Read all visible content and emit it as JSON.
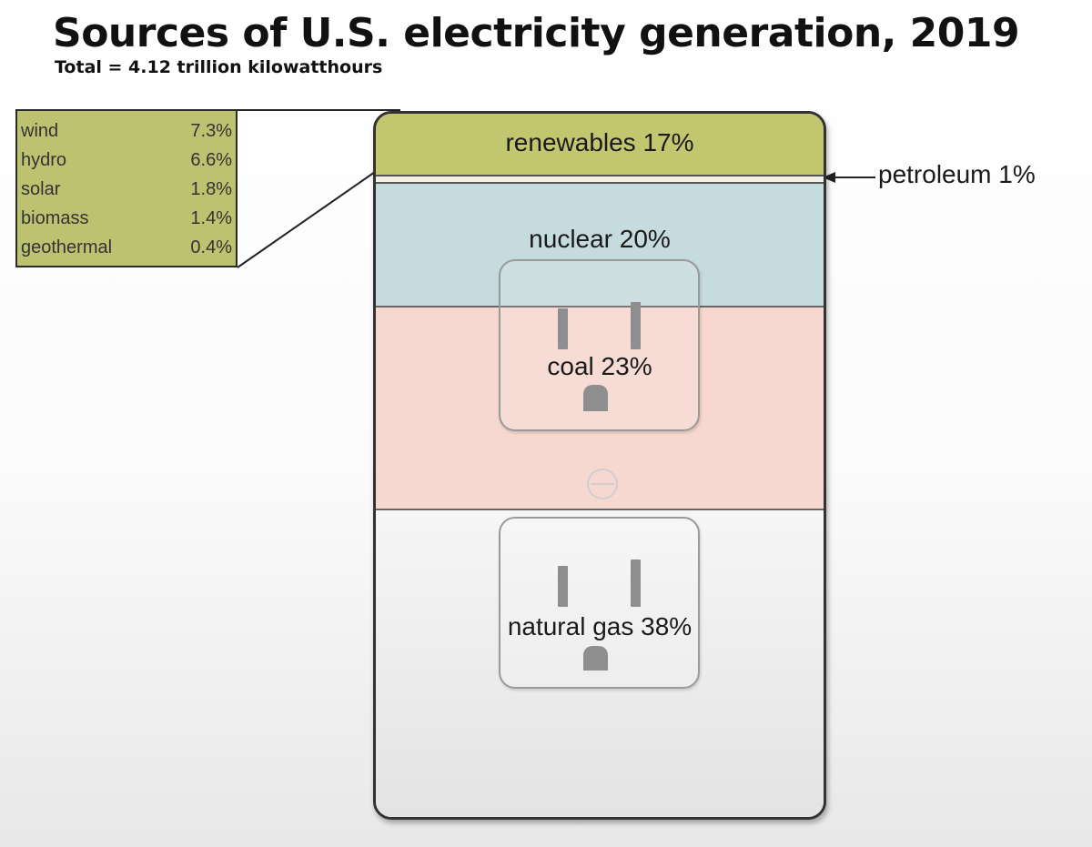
{
  "title": "Sources of U.S. electricity generation, 2019",
  "subtitle": "Total = 4.12 trillion kilowatthours",
  "chart_data": {
    "type": "stacked-bar",
    "title": "Sources of U.S. electricity generation, 2019",
    "subtitle": "Total = 4.12 trillion kilowatthours",
    "unit": "%",
    "segments": [
      {
        "name": "renewables",
        "label": "renewables 17%",
        "value": 17,
        "color": "#c2c66e"
      },
      {
        "name": "petroleum",
        "label": "petroleum 1%",
        "value": 1,
        "color": "#f2efe4"
      },
      {
        "name": "nuclear",
        "label": "nuclear 20%",
        "value": 20,
        "color": "#c6dbdd"
      },
      {
        "name": "coal",
        "label": "coal 23%",
        "value": 23,
        "color": "#f6d8d0"
      },
      {
        "name": "natural gas",
        "label": "natural gas 38%",
        "value": 38,
        "color": "#f2f2f2"
      }
    ],
    "renewables_breakdown": [
      {
        "name": "wind",
        "value": "7.3%"
      },
      {
        "name": "hydro",
        "value": "6.6%"
      },
      {
        "name": "solar",
        "value": "1.8%"
      },
      {
        "name": "biomass",
        "value": "1.4%"
      },
      {
        "name": "geothermal",
        "value": "0.4%"
      }
    ]
  }
}
